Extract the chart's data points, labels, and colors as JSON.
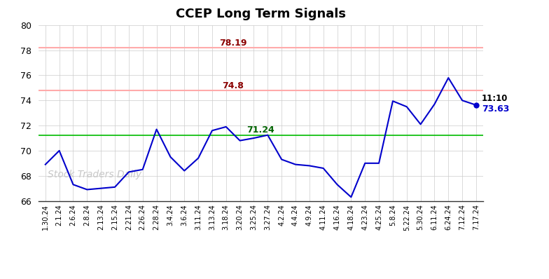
{
  "title": "CCEP Long Term Signals",
  "x_labels": [
    "1.30.24",
    "2.1.24",
    "2.6.24",
    "2.8.24",
    "2.13.24",
    "2.15.24",
    "2.21.24",
    "2.26.24",
    "2.28.24",
    "3.4.24",
    "3.6.24",
    "3.11.24",
    "3.13.24",
    "3.18.24",
    "3.20.24",
    "3.25.24",
    "3.27.24",
    "4.2.24",
    "4.4.24",
    "4.9.24",
    "4.11.24",
    "4.16.24",
    "4.18.24",
    "4.23.24",
    "4.25.24",
    "5.8.24",
    "5.22.24",
    "5.30.24",
    "6.11.24",
    "6.24.24",
    "7.12.24",
    "7.17.24"
  ],
  "y_values": [
    68.9,
    70.0,
    67.3,
    66.9,
    67.0,
    67.1,
    68.3,
    68.5,
    71.7,
    69.5,
    68.4,
    69.4,
    71.6,
    71.9,
    70.8,
    71.0,
    71.24,
    69.3,
    68.9,
    68.8,
    68.6,
    67.3,
    66.3,
    69.0,
    69.0,
    73.95,
    73.5,
    72.1,
    73.7,
    75.8,
    74.0,
    73.63
  ],
  "hline_green": 71.24,
  "hline_pink1": 74.8,
  "hline_pink2": 78.19,
  "label_green": "71.24",
  "label_pink1": "74.8",
  "label_pink2": "78.19",
  "label_time": "11:10",
  "label_last": "73.63",
  "ylim": [
    66,
    80
  ],
  "yticks": [
    66,
    68,
    70,
    72,
    74,
    76,
    78,
    80
  ],
  "line_color": "#0000cc",
  "hline_green_color": "#00bb00",
  "hline_pink_color": "#ffaaaa",
  "annotation_red_color": "#8b0000",
  "annotation_green_color": "#006400",
  "watermark": "Stock Traders Daily",
  "background_color": "#ffffff",
  "grid_color": "#cccccc"
}
